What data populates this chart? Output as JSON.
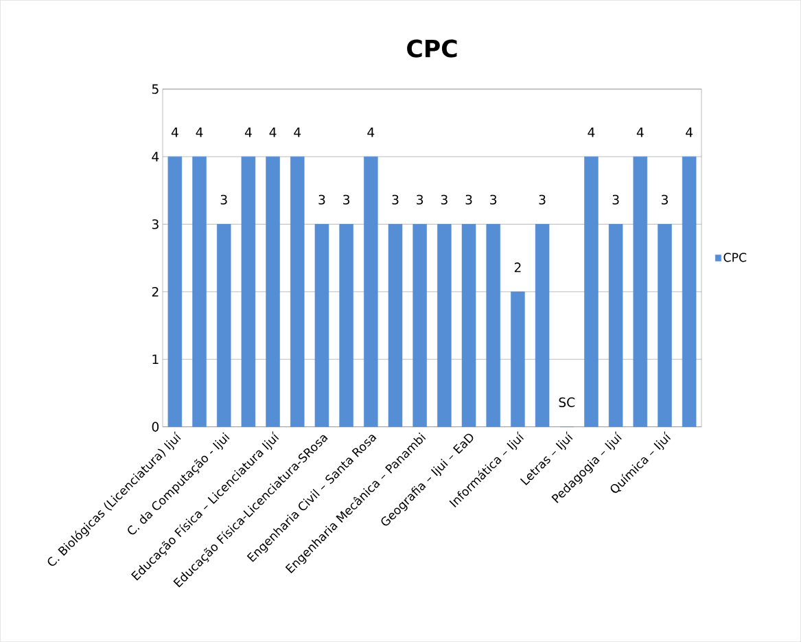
{
  "chart_data": {
    "type": "bar",
    "title": "CPC",
    "categories": [
      "C. Biológicas (Licenciatura) Ijuí",
      null,
      "C. da Computação - Ijui",
      null,
      "Educação Física – Licenciatura Ijuí",
      null,
      "Educação Física-Licenciatura-SRosa",
      null,
      "Engenharia Civil – Santa Rosa",
      null,
      "Engenharia Mecânica – Panambi",
      null,
      "Geografia – Ijui – EaD",
      null,
      "Informática – Ijuí",
      null,
      "Letras – Ijuí",
      null,
      "Pedagogia – Ijuí",
      null,
      "Química – Ijuí",
      null
    ],
    "series": [
      {
        "name": "CPC",
        "color": "#558ed5",
        "values": [
          4,
          4,
          3,
          4,
          4,
          4,
          3,
          3,
          4,
          3,
          3,
          3,
          3,
          3,
          2,
          3,
          0,
          4,
          3,
          4,
          3,
          4
        ]
      }
    ],
    "value_labels": [
      "4",
      "4",
      "3",
      "4",
      "4",
      "4",
      "3",
      "3",
      "4",
      "3",
      "3",
      "3",
      "3",
      "3",
      "2",
      "3",
      "SC",
      "4",
      "3",
      "4",
      "3",
      "4"
    ],
    "ylim": [
      0,
      5
    ],
    "yticks": [
      0,
      1,
      2,
      3,
      4,
      5
    ],
    "grid": "y",
    "legend": "right"
  }
}
